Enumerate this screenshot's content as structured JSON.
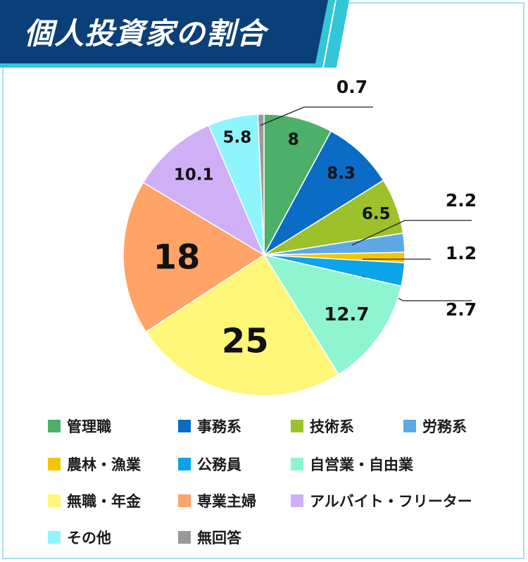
{
  "header": {
    "title": "個人投資家の割合"
  },
  "colors": {
    "banner": "#0b3f78",
    "banner_stripe": "#33c6d8",
    "frame": "#a8dfe6"
  },
  "chart_data": {
    "type": "pie",
    "title": "個人投資家の割合",
    "slices": [
      {
        "label": "管理職",
        "value": 8,
        "color": "#4caf6a"
      },
      {
        "label": "事務系",
        "value": 8.3,
        "color": "#0a6cc4"
      },
      {
        "label": "技術系",
        "value": 6.5,
        "color": "#9dc12a"
      },
      {
        "label": "労務系",
        "value": 2.2,
        "color": "#5fa8e6"
      },
      {
        "label": "農林・漁業",
        "value": 1.2,
        "color": "#f2c600"
      },
      {
        "label": "公務員",
        "value": 2.7,
        "color": "#0aa4e8"
      },
      {
        "label": "自営業・自由業",
        "value": 12.7,
        "color": "#8ef5d0"
      },
      {
        "label": "無職・年金",
        "value": 25,
        "color": "#fff77a"
      },
      {
        "label": "専業主婦",
        "value": 18,
        "color": "#ffa366"
      },
      {
        "label": "アルバイト・フリーター",
        "value": 10.1,
        "color": "#cfb0f7"
      },
      {
        "label": "その他",
        "value": 5.8,
        "color": "#8ef5fc"
      },
      {
        "label": "無回答",
        "value": 0.7,
        "color": "#9a9a9a"
      }
    ],
    "data_labels": [
      "8",
      "8.3",
      "6.5",
      "2.2",
      "1.2",
      "2.7",
      "12.7",
      "25",
      "18",
      "10.1",
      "5.8",
      "0.7"
    ],
    "legend_position": "bottom"
  }
}
